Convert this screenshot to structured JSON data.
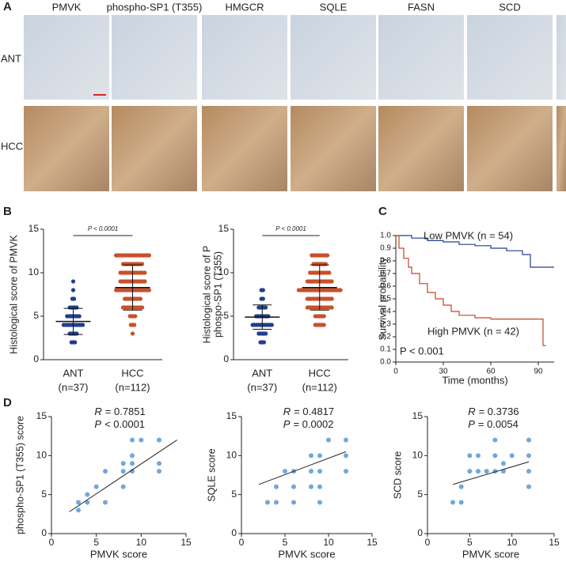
{
  "panel_labels": [
    "A",
    "B",
    "C",
    "D"
  ],
  "panel_a": {
    "columns": [
      "PMVK",
      "phospho-SP1 (T355)",
      "HMGCR",
      "SQLE",
      "FASN",
      "SCD"
    ],
    "rows": [
      "ANT",
      "HCC"
    ]
  },
  "chart_data": [
    {
      "type": "dot",
      "ylabel": [
        "Histological score of PMVK"
      ],
      "annotation": "P < 0.0001",
      "categories": [
        "ANT",
        "HCC"
      ],
      "category_n": [
        "(n=37)",
        "(n=112)"
      ],
      "colors": [
        "#1f3f8f",
        "#c9502a"
      ],
      "levels": [
        [
          2,
          3,
          4,
          5,
          6,
          7,
          8,
          9
        ],
        [
          3,
          4,
          5,
          6,
          7,
          8,
          9,
          10,
          11,
          12
        ]
      ],
      "counts": [
        [
          3,
          5,
          12,
          8,
          5,
          2,
          1,
          1
        ],
        [
          1,
          3,
          4,
          12,
          10,
          20,
          15,
          15,
          12,
          20
        ]
      ],
      "mean": [
        4.4,
        8.3
      ],
      "sd": [
        1.5,
        2.6
      ],
      "ylim": [
        0,
        15
      ],
      "yticks": [
        0,
        5,
        10,
        15
      ]
    },
    {
      "type": "dot",
      "ylabel": [
        "Histological score of P",
        "phospo-SP1 (T355)"
      ],
      "annotation": "P < 0.0001",
      "categories": [
        "ANT",
        "HCC"
      ],
      "category_n": [
        "(n=37)",
        "(n=112)"
      ],
      "colors": [
        "#1f3f8f",
        "#c9502a"
      ],
      "levels": [
        [
          2,
          3,
          4,
          5,
          6,
          7,
          8
        ],
        [
          4,
          5,
          6,
          7,
          8,
          9,
          10,
          11,
          12
        ]
      ],
      "counts": [
        [
          3,
          5,
          12,
          8,
          5,
          2,
          2
        ],
        [
          6,
          6,
          15,
          15,
          25,
          15,
          12,
          8,
          10
        ]
      ],
      "mean": [
        4.9,
        8.3
      ],
      "sd": [
        1.4,
        2.6
      ],
      "ylim": [
        0,
        15
      ],
      "yticks": [
        0,
        5,
        10,
        15
      ]
    },
    {
      "type": "step",
      "ylabel": [
        "Survival probability"
      ],
      "xlabel": "Time (months)",
      "annotation": "P < 0.001",
      "xlim": [
        0,
        100
      ],
      "xticks": [
        0,
        30,
        60,
        90
      ],
      "ylim": [
        0,
        1
      ],
      "yticks": [
        {
          "value": 0,
          "label": "0.0"
        },
        0.1,
        0.2,
        0.3,
        0.4,
        0.5,
        0.6,
        0.7,
        0.8,
        0.9,
        {
          "value": 1,
          "label": "1.0"
        }
      ],
      "series": [
        {
          "name": "Low PMVK (n = 54)",
          "color": "#1f3f8f",
          "x": [
            0,
            10,
            20,
            30,
            40,
            50,
            60,
            70,
            80,
            85,
            90,
            100
          ],
          "values": [
            1,
            0.98,
            0.96,
            0.95,
            0.93,
            0.92,
            0.9,
            0.88,
            0.85,
            0.75,
            0.75,
            0.75
          ]
        },
        {
          "name": "High PMVK (n = 42)",
          "color": "#c9402a",
          "x": [
            0,
            2,
            5,
            8,
            10,
            15,
            20,
            25,
            30,
            35,
            40,
            50,
            60,
            70,
            80,
            90,
            93,
            95
          ],
          "values": [
            1,
            0.9,
            0.82,
            0.75,
            0.7,
            0.62,
            0.55,
            0.5,
            0.45,
            0.4,
            0.37,
            0.35,
            0.34,
            0.34,
            0.34,
            0.34,
            0.13,
            0.13
          ]
        }
      ]
    },
    {
      "type": "scatter",
      "ylabel": [
        "phospho-SP1 (T355) score"
      ],
      "xlabel": "PMVK score",
      "stats": [
        [
          "R",
          "= 0.7851"
        ],
        [
          "P",
          "< 0.0001"
        ]
      ],
      "color": "#6fa8dc",
      "xlim": [
        0,
        15
      ],
      "xticks": [
        0,
        5,
        10,
        15
      ],
      "ylim": [
        0,
        15
      ],
      "yticks": [
        0,
        5,
        10,
        15
      ],
      "x": [
        3,
        3,
        4,
        4,
        5,
        6,
        6,
        8,
        8,
        8,
        9,
        9,
        9,
        9,
        10,
        12,
        12,
        12
      ],
      "values": [
        3,
        4,
        4,
        5,
        6,
        4,
        8,
        6,
        8,
        9,
        8,
        9,
        10,
        12,
        12,
        8,
        9,
        12
      ],
      "fit": {
        "x": [
          2,
          14
        ],
        "y": [
          2.8,
          12
        ]
      }
    },
    {
      "type": "scatter",
      "ylabel": [
        "SQLE score"
      ],
      "xlabel": "PMVK score",
      "stats": [
        [
          "R",
          "= 0.4817"
        ],
        [
          "P",
          "= 0.0002"
        ]
      ],
      "color": "#6fa8dc",
      "xlim": [
        0,
        15
      ],
      "xticks": [
        0,
        5,
        10,
        15
      ],
      "ylim": [
        0,
        15
      ],
      "yticks": [
        0,
        5,
        10,
        15
      ],
      "x": [
        3,
        4,
        4,
        5,
        6,
        6,
        6,
        8,
        8,
        8,
        9,
        9,
        9,
        9,
        10,
        12,
        12,
        12
      ],
      "values": [
        4,
        4,
        6,
        8,
        4,
        6,
        8,
        8,
        6,
        10,
        4,
        6,
        8,
        10,
        12,
        8,
        10,
        12
      ],
      "fit": {
        "x": [
          2,
          12
        ],
        "y": [
          6.3,
          10.5
        ]
      }
    },
    {
      "type": "scatter",
      "ylabel": [
        "SCD score"
      ],
      "xlabel": "PMVK score",
      "stats": [
        [
          "R",
          "= 0.3736"
        ],
        [
          "P",
          "= 0.0054"
        ]
      ],
      "color": "#6fa8dc",
      "xlim": [
        0,
        15
      ],
      "xticks": [
        0,
        5,
        10,
        15
      ],
      "ylim": [
        0,
        15
      ],
      "yticks": [
        0,
        5,
        10,
        15
      ],
      "x": [
        3,
        4,
        4,
        5,
        5,
        6,
        6,
        7,
        8,
        8,
        8,
        9,
        9,
        10,
        12,
        12,
        12,
        12
      ],
      "values": [
        4,
        4,
        6,
        8,
        10,
        8,
        10,
        8,
        8,
        10,
        12,
        8,
        9,
        10,
        6,
        8,
        10,
        12
      ],
      "fit": {
        "x": [
          3,
          12
        ],
        "y": [
          6.3,
          9.2
        ]
      }
    }
  ]
}
